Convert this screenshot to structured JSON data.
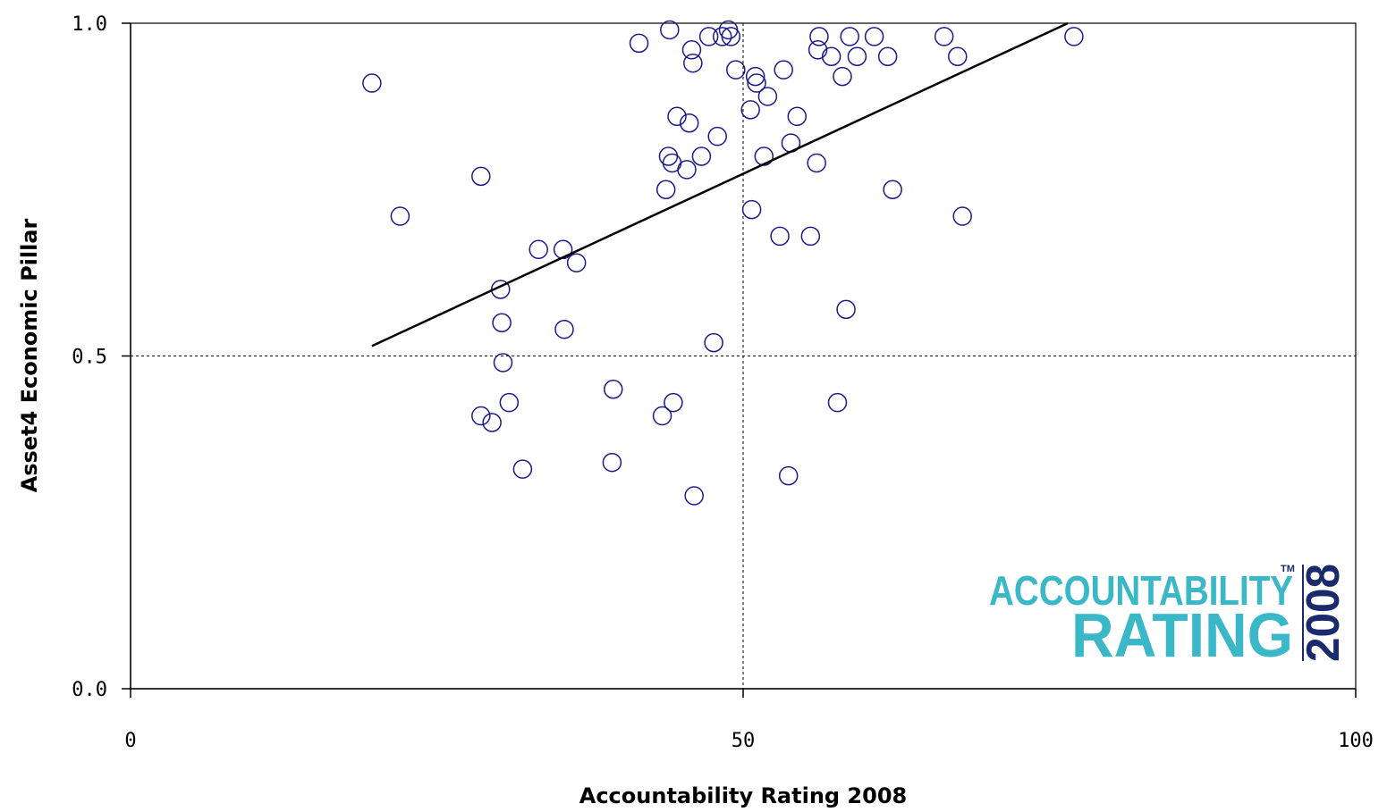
{
  "chart_data": {
    "type": "scatter",
    "title": "",
    "xlabel": "Accountability Rating 2008",
    "ylabel": "Asset4 Economic Pillar",
    "xlim": [
      0,
      100
    ],
    "ylim": [
      0,
      1
    ],
    "xticks": [
      "0",
      "50",
      "100"
    ],
    "yticks": [
      "0.0",
      "0.5",
      "1.0"
    ],
    "reference_lines": {
      "x": 50,
      "y": 0.5,
      "style": "dotted"
    },
    "marker": {
      "shape": "circle",
      "filled": false,
      "color": "#1a1a8c"
    },
    "trendline": {
      "x": [
        19.7,
        76.5
      ],
      "y": [
        0.515,
        1.0
      ],
      "color": "#000000"
    },
    "points": [
      [
        19.7,
        0.91
      ],
      [
        22.0,
        0.71
      ],
      [
        28.6,
        0.41
      ],
      [
        29.5,
        0.4
      ],
      [
        30.9,
        0.43
      ],
      [
        28.6,
        0.77
      ],
      [
        30.2,
        0.6
      ],
      [
        30.3,
        0.55
      ],
      [
        30.4,
        0.49
      ],
      [
        32.0,
        0.33
      ],
      [
        33.3,
        0.66
      ],
      [
        35.3,
        0.66
      ],
      [
        35.4,
        0.54
      ],
      [
        36.4,
        0.64
      ],
      [
        39.3,
        0.34
      ],
      [
        39.4,
        0.45
      ],
      [
        41.5,
        0.97
      ],
      [
        43.4,
        0.41
      ],
      [
        43.7,
        0.75
      ],
      [
        43.9,
        0.8
      ],
      [
        44.2,
        0.79
      ],
      [
        44.3,
        0.43
      ],
      [
        44.6,
        0.86
      ],
      [
        45.4,
        0.78
      ],
      [
        45.6,
        0.85
      ],
      [
        45.8,
        0.96
      ],
      [
        45.9,
        0.94
      ],
      [
        46.0,
        0.29
      ],
      [
        46.6,
        0.8
      ],
      [
        47.2,
        0.98
      ],
      [
        47.6,
        0.52
      ],
      [
        47.9,
        0.83
      ],
      [
        48.3,
        0.98
      ],
      [
        49.0,
        0.98
      ],
      [
        49.4,
        0.93
      ],
      [
        50.6,
        0.87
      ],
      [
        50.7,
        0.72
      ],
      [
        51.0,
        0.92
      ],
      [
        51.1,
        0.91
      ],
      [
        51.7,
        0.8
      ],
      [
        52.0,
        0.89
      ],
      [
        53.0,
        0.68
      ],
      [
        53.3,
        0.93
      ],
      [
        53.7,
        0.32
      ],
      [
        53.9,
        0.82
      ],
      [
        54.4,
        0.86
      ],
      [
        55.5,
        0.68
      ],
      [
        56.0,
        0.79
      ],
      [
        56.1,
        0.96
      ],
      [
        56.2,
        0.98
      ],
      [
        57.2,
        0.95
      ],
      [
        57.7,
        0.43
      ],
      [
        58.1,
        0.92
      ],
      [
        58.4,
        0.57
      ],
      [
        58.7,
        0.98
      ],
      [
        59.3,
        0.95
      ],
      [
        60.7,
        0.98
      ],
      [
        61.8,
        0.95
      ],
      [
        62.2,
        0.75
      ],
      [
        66.4,
        0.98
      ],
      [
        67.5,
        0.95
      ],
      [
        67.9,
        0.71
      ],
      [
        77.0,
        0.98
      ],
      [
        44.0,
        0.99
      ],
      [
        48.8,
        0.99
      ]
    ]
  },
  "logo": {
    "line1": "ACCOUNTABILITY",
    "line2": "RATING",
    "year": "2008",
    "tm": "TM",
    "color_main": "#3ab8c8",
    "color_year": "#1a2a6c"
  }
}
